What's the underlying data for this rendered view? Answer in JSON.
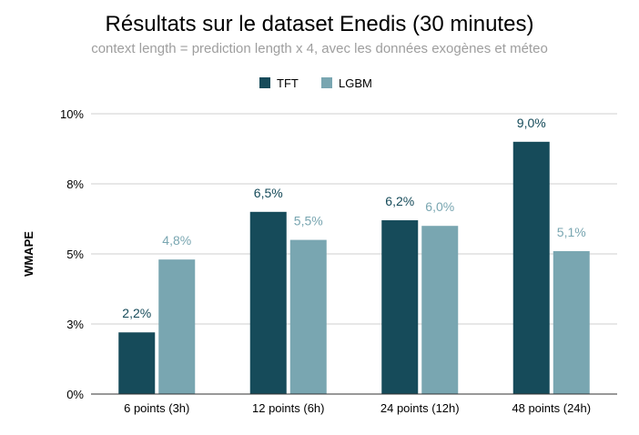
{
  "chart_data": {
    "type": "bar",
    "title": "Résultats sur le dataset Enedis (30 minutes)",
    "subtitle": "context length = prediction length x 4, avec les données exogènes et méteo",
    "xlabel": "",
    "ylabel": "WMAPE",
    "categories": [
      "6 points (3h)",
      "12 points (6h)",
      "24 points (12h)",
      "48 points (24h)"
    ],
    "series": [
      {
        "name": "TFT",
        "color": "#164b5a",
        "values": [
          2.2,
          6.5,
          6.2,
          9.0
        ],
        "labels": [
          "2,2%",
          "6,5%",
          "6,2%",
          "9,0%"
        ]
      },
      {
        "name": "LGBM",
        "color": "#79a6b1",
        "values": [
          4.8,
          5.5,
          6.0,
          5.1
        ],
        "labels": [
          "4,8%",
          "5,5%",
          "6,0%",
          "5,1%"
        ]
      }
    ],
    "ylim": [
      0,
      10
    ],
    "yticks": [
      0,
      2.5,
      5,
      7.5,
      10
    ],
    "ytick_labels": [
      "0%",
      "3%",
      "5%",
      "8%",
      "10%"
    ],
    "grid": true,
    "legend_position": "top-center"
  }
}
